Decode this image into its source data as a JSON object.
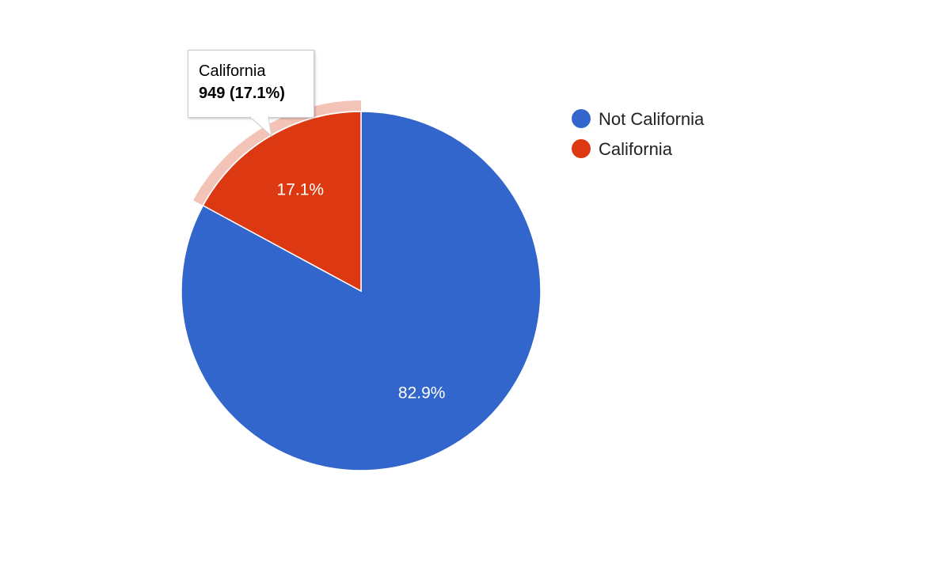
{
  "chart_data": {
    "type": "pie",
    "slices": [
      {
        "label": "Not California",
        "value": 4601,
        "percent_label": "82.9%",
        "color": "#3366cc"
      },
      {
        "label": "California",
        "value": 949,
        "percent_label": "17.1%",
        "color": "#dc3912"
      }
    ],
    "legend_position": "right",
    "highlighted_slice": "California",
    "tooltip": {
      "title": "California",
      "value_text": "949 (17.1%)"
    }
  }
}
